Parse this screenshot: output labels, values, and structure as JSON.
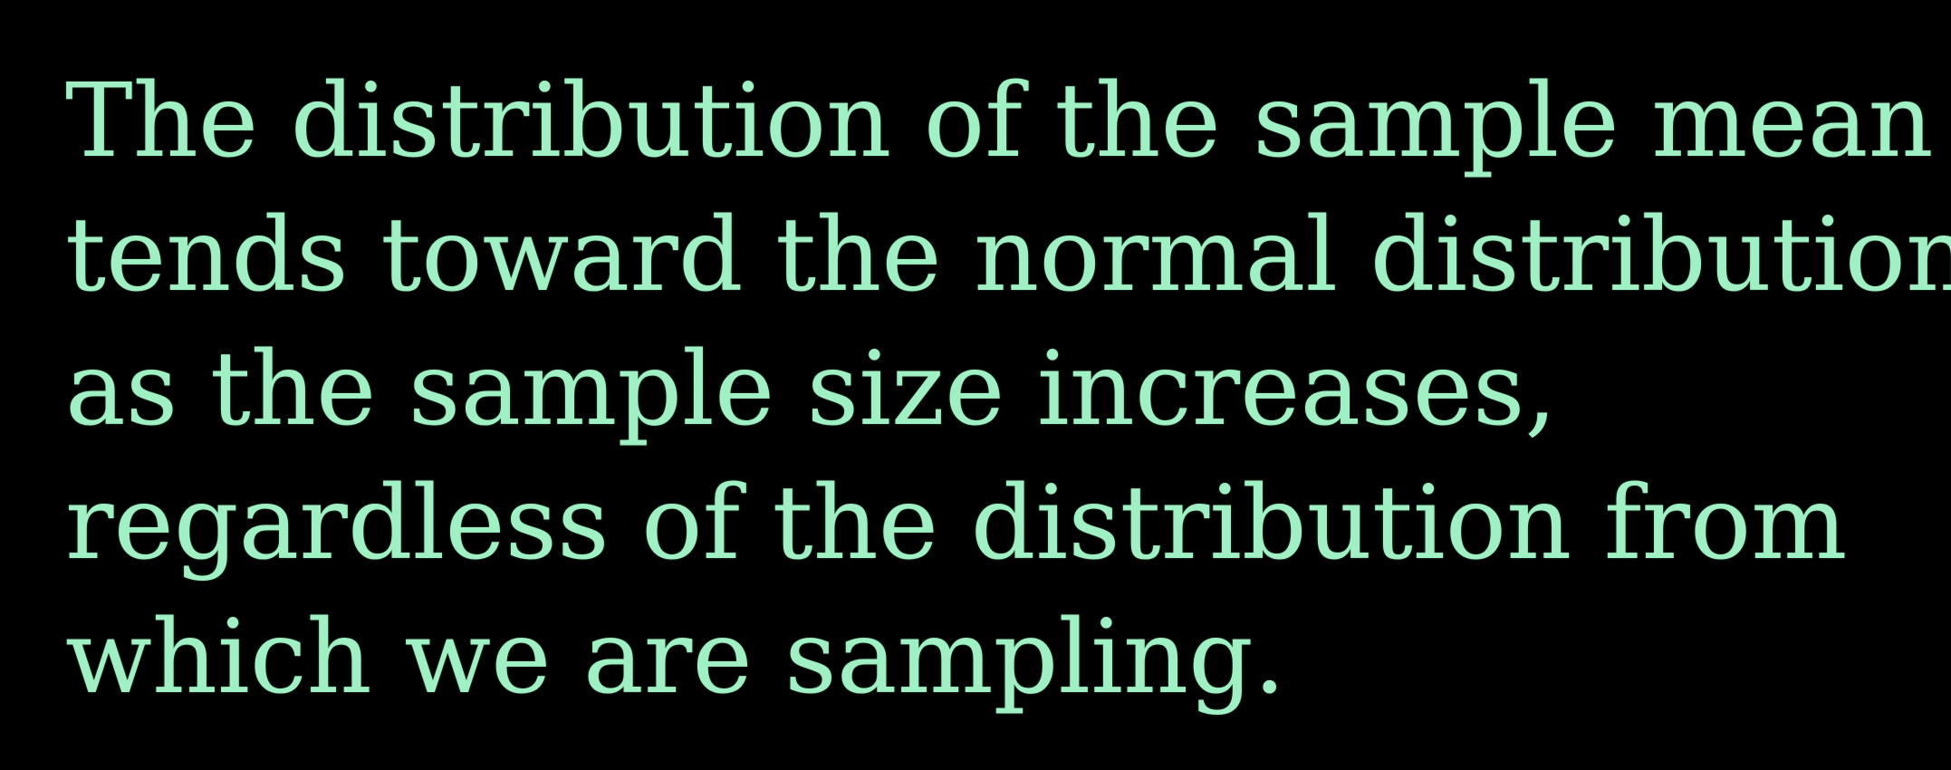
{
  "text": {
    "lines": [
      "The distribution of the sample mean",
      "tends toward the normal distribution",
      "as the sample size increases,",
      "regardless of the distribution from",
      "which we are sampling."
    ]
  },
  "colors": {
    "background": "#000000",
    "text": "#9ff0c2"
  }
}
